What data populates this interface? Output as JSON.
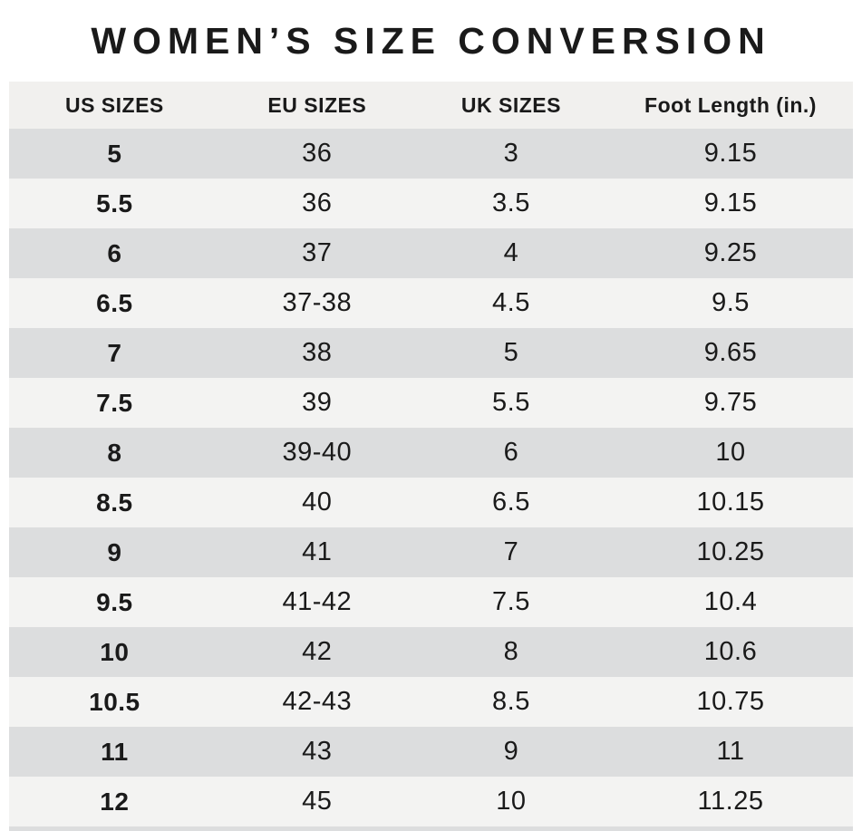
{
  "title": "WOMEN’S SIZE CONVERSION",
  "table": {
    "columns": [
      "US SIZES",
      "EU SIZES",
      "UK SIZES",
      "Foot Length (in.)"
    ],
    "rows": [
      {
        "us": "5",
        "eu": "36",
        "uk": "3",
        "foot": "9.15"
      },
      {
        "us": "5.5",
        "eu": "36",
        "uk": "3.5",
        "foot": "9.15"
      },
      {
        "us": "6",
        "eu": "37",
        "uk": "4",
        "foot": "9.25"
      },
      {
        "us": "6.5",
        "eu": "37-38",
        "uk": "4.5",
        "foot": "9.5"
      },
      {
        "us": "7",
        "eu": "38",
        "uk": "5",
        "foot": "9.65"
      },
      {
        "us": "7.5",
        "eu": "39",
        "uk": "5.5",
        "foot": "9.75"
      },
      {
        "us": "8",
        "eu": "39-40",
        "uk": "6",
        "foot": "10"
      },
      {
        "us": "8.5",
        "eu": "40",
        "uk": "6.5",
        "foot": "10.15"
      },
      {
        "us": "9",
        "eu": "41",
        "uk": "7",
        "foot": "10.25"
      },
      {
        "us": "9.5",
        "eu": "41-42",
        "uk": "7.5",
        "foot": "10.4"
      },
      {
        "us": "10",
        "eu": "42",
        "uk": "8",
        "foot": "10.6"
      },
      {
        "us": "10.5",
        "eu": "42-43",
        "uk": "8.5",
        "foot": "10.75"
      },
      {
        "us": "11",
        "eu": "43",
        "uk": "9",
        "foot": "11"
      },
      {
        "us": "12",
        "eu": "45",
        "uk": "10",
        "foot": "11.25"
      }
    ]
  },
  "colors": {
    "background": "#ffffff",
    "header_bg": "#f1f0ee",
    "row_dark": "#dcddde",
    "row_light": "#f3f3f2",
    "text": "#1a1a1a"
  },
  "chart_data": {
    "type": "table",
    "title": "WOMEN’S SIZE CONVERSION",
    "columns": [
      "US SIZES",
      "EU SIZES",
      "UK SIZES",
      "Foot Length (in.)"
    ],
    "rows": [
      [
        "5",
        "36",
        "3",
        "9.15"
      ],
      [
        "5.5",
        "36",
        "3.5",
        "9.15"
      ],
      [
        "6",
        "37",
        "4",
        "9.25"
      ],
      [
        "6.5",
        "37-38",
        "4.5",
        "9.5"
      ],
      [
        "7",
        "38",
        "5",
        "9.65"
      ],
      [
        "7.5",
        "39",
        "5.5",
        "9.75"
      ],
      [
        "8",
        "39-40",
        "6",
        "10"
      ],
      [
        "8.5",
        "40",
        "6.5",
        "10.15"
      ],
      [
        "9",
        "41",
        "7",
        "10.25"
      ],
      [
        "9.5",
        "41-42",
        "7.5",
        "10.4"
      ],
      [
        "10",
        "42",
        "8",
        "10.6"
      ],
      [
        "10.5",
        "42-43",
        "8.5",
        "10.75"
      ],
      [
        "11",
        "43",
        "9",
        "11"
      ],
      [
        "12",
        "45",
        "10",
        "11.25"
      ]
    ],
    "layout_hints": {
      "row_striping": "alternating dark/light gray, first data row dark",
      "us_sizes_column_bold": true,
      "alignment": "center"
    }
  }
}
